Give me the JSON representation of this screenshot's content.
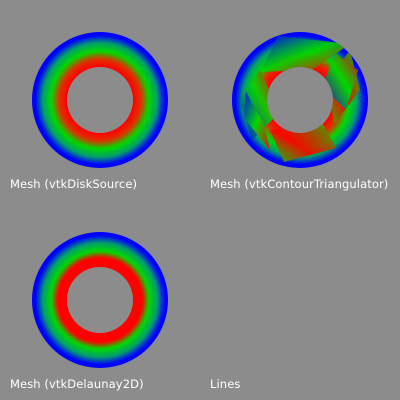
{
  "window": {
    "background_color": "#8c8c8c",
    "caption_color": "#ffffff"
  },
  "viewports": [
    {
      "caption": "Mesh (vtkDiskSource)",
      "render": "smooth-disk"
    },
    {
      "caption": "Mesh (vtkContourTriangulator)",
      "render": "faceted-disk"
    },
    {
      "caption": "Mesh (vtkDelaunay2D)",
      "render": "smooth-disk"
    },
    {
      "caption": "Lines",
      "render": "empty"
    }
  ],
  "colormap": {
    "inner_color": "#ff0000",
    "middle_color": "#00d800",
    "outer_color": "#0000ff"
  }
}
